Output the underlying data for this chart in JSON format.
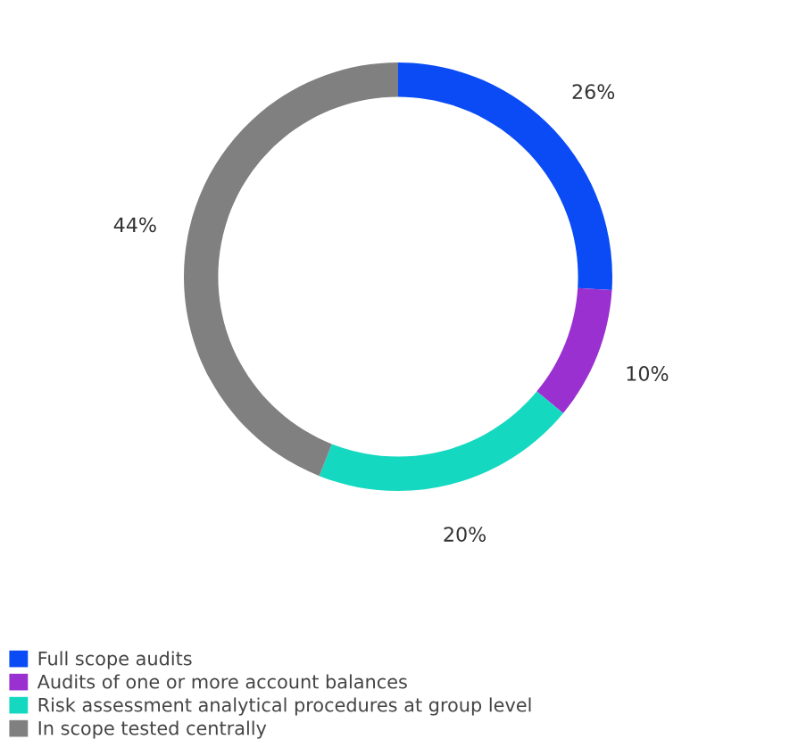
{
  "chart_data": {
    "type": "donut",
    "categories": [
      "Full scope audits",
      "Audits of one or more account balances",
      "Risk assessment analytical procedures at group level",
      "In scope tested centrally"
    ],
    "values": [
      26,
      10,
      20,
      44
    ],
    "colors": [
      "#0a4bf5",
      "#9b30d0",
      "#14d8c0",
      "#808080"
    ],
    "value_labels": [
      "26%",
      "10%",
      "20%",
      "44%"
    ],
    "legend": "bottom"
  }
}
